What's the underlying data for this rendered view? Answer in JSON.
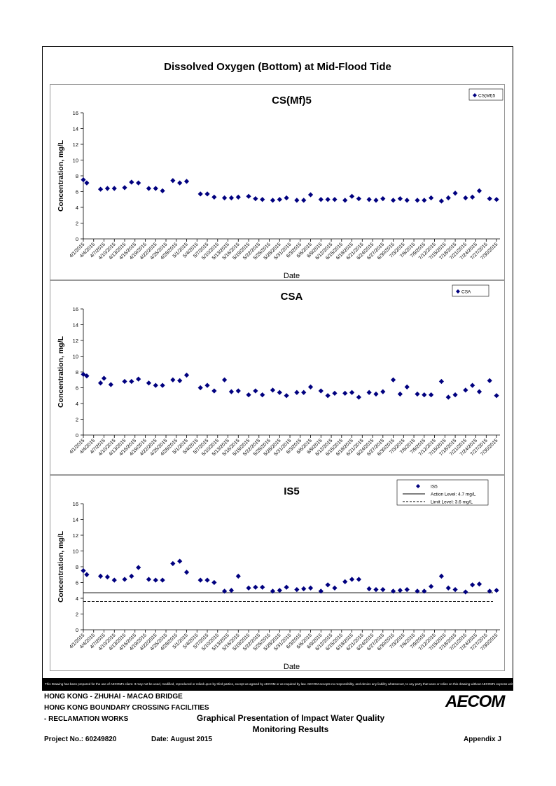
{
  "page_title": "Dissolved Oxygen (Bottom) at Mid-Flood Tide",
  "disclaimer": "This Drawing has been prepared for the use of AECOM's client. It may not be used, modified, reproduced or relied upon by third parties, except as agreed by AECOM or as required by law. AECOM accepts no responsibility, and denies any liability whatsoever, to any party that uses or relies on this drawing without AECOM's express written consent.",
  "footer": {
    "line1": "HONG KONG - ZHUHAI - MACAO BRIDGE",
    "line2": "HONG KONG BOUNDARY CROSSING FACILITIES",
    "line3": "- RECLAMATION WORKS",
    "title_line1": "Graphical Presentation of Impact Water Quality",
    "title_line2": "Monitoring Results",
    "project": "Project No.: 60249820",
    "date": "Date: August 2015",
    "appendix": "Appendix J",
    "logo": "AECOM"
  },
  "colors": {
    "marker": "#00007f",
    "line": "#000000",
    "frame": "#000000"
  },
  "chart_data": [
    {
      "type": "scatter",
      "title": "CS(Mf)5",
      "xlabel": "Date",
      "ylabel": "Concentration, mg/L",
      "ylim": [
        0,
        16
      ],
      "yticks": [
        0,
        2,
        4,
        6,
        8,
        10,
        12,
        14,
        16
      ],
      "xlim": [
        "4/1/2015",
        "7/31/2015"
      ],
      "xtick_labels": [
        "4/1/2015",
        "4/4/2015",
        "4/7/2015",
        "4/10/2015",
        "4/13/2015",
        "4/16/2015",
        "4/19/2015",
        "4/22/2015",
        "4/25/2015",
        "4/28/2015",
        "5/1/2015",
        "5/4/2015",
        "5/7/2015",
        "5/10/2015",
        "5/13/2015",
        "5/16/2015",
        "5/19/2015",
        "5/22/2015",
        "5/25/2015",
        "5/28/2015",
        "5/31/2015",
        "6/3/2015",
        "6/6/2015",
        "6/9/2015",
        "6/12/2015",
        "6/15/2015",
        "6/18/2015",
        "6/21/2015",
        "6/24/2015",
        "6/27/2015",
        "6/30/2015",
        "7/3/2015",
        "7/6/2015",
        "7/9/2015",
        "7/12/2015",
        "7/15/2015",
        "7/18/2015",
        "7/21/2015",
        "7/24/2015",
        "7/27/2015",
        "7/30/2015"
      ],
      "legend": {
        "position": "top-right",
        "entries": [
          "CS(Mf)5"
        ]
      },
      "series": [
        {
          "name": "CS(Mf)5",
          "x": [
            "4/1/2015",
            "4/2/2015",
            "4/6/2015",
            "4/8/2015",
            "4/10/2015",
            "4/13/2015",
            "4/15/2015",
            "4/17/2015",
            "4/20/2015",
            "4/22/2015",
            "4/24/2015",
            "4/27/2015",
            "4/29/2015",
            "5/1/2015",
            "5/5/2015",
            "5/7/2015",
            "5/9/2015",
            "5/12/2015",
            "5/14/2015",
            "5/16/2015",
            "5/19/2015",
            "5/21/2015",
            "5/23/2015",
            "5/26/2015",
            "5/28/2015",
            "5/30/2015",
            "6/2/2015",
            "6/4/2015",
            "6/6/2015",
            "6/9/2015",
            "6/11/2015",
            "6/13/2015",
            "6/16/2015",
            "6/18/2015",
            "6/20/2015",
            "6/23/2015",
            "6/25/2015",
            "6/27/2015",
            "6/30/2015",
            "7/2/2015",
            "7/4/2015",
            "7/7/2015",
            "7/9/2015",
            "7/11/2015",
            "7/14/2015",
            "7/16/2015",
            "7/18/2015",
            "7/21/2015",
            "7/23/2015",
            "7/25/2015",
            "7/28/2015",
            "7/30/2015",
            "8/1/2015"
          ],
          "y": [
            7.5,
            7.1,
            6.3,
            6.4,
            6.4,
            6.5,
            7.2,
            7.1,
            6.4,
            6.4,
            6.1,
            7.4,
            7.1,
            7.3,
            5.7,
            5.7,
            5.3,
            5.2,
            5.2,
            5.3,
            5.4,
            5.1,
            5.0,
            4.9,
            5.0,
            5.2,
            4.9,
            4.9,
            5.6,
            5.0,
            5.0,
            5.0,
            4.9,
            5.4,
            5.1,
            5.0,
            4.9,
            5.1,
            4.9,
            5.1,
            4.9,
            4.9,
            4.9,
            5.2,
            4.8,
            5.2,
            5.8,
            5.2,
            5.3,
            6.1,
            5.1,
            5.0,
            5.1
          ]
        }
      ]
    },
    {
      "type": "scatter",
      "title": "CSA",
      "xlabel": "",
      "ylabel": "Concentration, mg/L",
      "ylim": [
        0,
        16
      ],
      "yticks": [
        0,
        2,
        4,
        6,
        8,
        10,
        12,
        14,
        16
      ],
      "xlim": [
        "4/1/2015",
        "7/31/2015"
      ],
      "xtick_labels": [
        "4/1/2015",
        "4/4/2015",
        "4/7/2015",
        "4/10/2015",
        "4/13/2015",
        "4/16/2015",
        "4/19/2015",
        "4/22/2015",
        "4/25/2015",
        "4/28/2015",
        "5/1/2015",
        "5/4/2015",
        "5/7/2015",
        "5/10/2015",
        "5/13/2015",
        "5/16/2015",
        "5/19/2015",
        "5/22/2015",
        "5/25/2015",
        "5/28/2015",
        "5/31/2015",
        "6/3/2015",
        "6/6/2015",
        "6/9/2015",
        "6/12/2015",
        "6/15/2015",
        "6/18/2015",
        "6/21/2015",
        "6/24/2015",
        "6/27/2015",
        "6/30/2015",
        "7/3/2015",
        "7/6/2015",
        "7/9/2015",
        "7/12/2015",
        "7/15/2015",
        "7/18/2015",
        "7/21/2015",
        "7/24/2015",
        "7/27/2015",
        "7/30/2015"
      ],
      "legend": {
        "position": "top-right",
        "entries": [
          "CSA"
        ]
      },
      "series": [
        {
          "name": "CSA",
          "x": [
            "4/1/2015",
            "4/2/2015",
            "4/6/2015",
            "4/7/2015",
            "4/9/2015",
            "4/13/2015",
            "4/15/2015",
            "4/17/2015",
            "4/20/2015",
            "4/22/2015",
            "4/24/2015",
            "4/27/2015",
            "4/29/2015",
            "5/1/2015",
            "5/5/2015",
            "5/7/2015",
            "5/9/2015",
            "5/12/2015",
            "5/14/2015",
            "5/16/2015",
            "5/19/2015",
            "5/21/2015",
            "5/23/2015",
            "5/26/2015",
            "5/28/2015",
            "5/30/2015",
            "6/2/2015",
            "6/4/2015",
            "6/6/2015",
            "6/9/2015",
            "6/11/2015",
            "6/13/2015",
            "6/16/2015",
            "6/18/2015",
            "6/20/2015",
            "6/23/2015",
            "6/25/2015",
            "6/27/2015",
            "6/30/2015",
            "7/2/2015",
            "7/4/2015",
            "7/7/2015",
            "7/9/2015",
            "7/11/2015",
            "7/14/2015",
            "7/16/2015",
            "7/18/2015",
            "7/21/2015",
            "7/23/2015",
            "7/25/2015",
            "7/28/2015",
            "7/30/2015",
            "8/1/2015"
          ],
          "y": [
            7.7,
            7.5,
            6.6,
            7.2,
            6.4,
            6.8,
            6.8,
            7.1,
            6.6,
            6.3,
            6.3,
            7.0,
            6.9,
            7.6,
            6.0,
            6.3,
            5.6,
            7.0,
            5.5,
            5.6,
            5.1,
            5.6,
            5.1,
            5.7,
            5.4,
            5.0,
            5.4,
            5.4,
            6.1,
            5.6,
            5.0,
            5.3,
            5.3,
            5.4,
            4.8,
            5.4,
            5.2,
            5.5,
            7.0,
            5.2,
            6.1,
            5.2,
            5.1,
            5.1,
            6.8,
            4.8,
            5.1,
            5.7,
            6.3,
            5.5,
            6.9,
            5.0,
            5.1
          ]
        }
      ]
    },
    {
      "type": "scatter",
      "title": "IS5",
      "xlabel": "Date",
      "ylabel": "Concentration, mg/L",
      "ylim": [
        0,
        16
      ],
      "yticks": [
        0,
        2,
        4,
        6,
        8,
        10,
        12,
        14,
        16
      ],
      "xlim": [
        "4/1/2015",
        "7/31/2015"
      ],
      "xtick_labels": [
        "4/1/2015",
        "4/4/2015",
        "4/7/2015",
        "4/10/2015",
        "4/13/2015",
        "4/16/2015",
        "4/19/2015",
        "4/22/2015",
        "4/25/2015",
        "4/28/2015",
        "5/1/2015",
        "5/4/2015",
        "5/7/2015",
        "5/10/2015",
        "5/13/2015",
        "5/16/2015",
        "5/19/2015",
        "5/22/2015",
        "5/25/2015",
        "5/28/2015",
        "5/31/2015",
        "6/3/2015",
        "6/6/2015",
        "6/9/2015",
        "6/12/2015",
        "6/15/2015",
        "6/18/2015",
        "6/21/2015",
        "6/24/2015",
        "6/27/2015",
        "6/30/2015",
        "7/3/2015",
        "7/6/2015",
        "7/9/2015",
        "7/12/2015",
        "7/15/2015",
        "7/18/2015",
        "7/21/2015",
        "7/24/2015",
        "7/27/2015",
        "7/30/2015"
      ],
      "legend": {
        "position": "top-right",
        "entries": [
          "IS5",
          "Action Level: 4.7 mg/L",
          "Limit Level: 3.6 mg/L"
        ]
      },
      "reference_lines": [
        {
          "name": "Action Level: 4.7 mg/L",
          "y": 4.7,
          "style": "solid"
        },
        {
          "name": "Limit Level: 3.6 mg/L",
          "y": 3.6,
          "style": "dashed"
        }
      ],
      "series": [
        {
          "name": "IS5",
          "x": [
            "4/1/2015",
            "4/2/2015",
            "4/6/2015",
            "4/8/2015",
            "4/10/2015",
            "4/13/2015",
            "4/15/2015",
            "4/17/2015",
            "4/20/2015",
            "4/22/2015",
            "4/24/2015",
            "4/27/2015",
            "4/29/2015",
            "5/1/2015",
            "5/5/2015",
            "5/7/2015",
            "5/9/2015",
            "5/12/2015",
            "5/14/2015",
            "5/16/2015",
            "5/19/2015",
            "5/21/2015",
            "5/23/2015",
            "5/26/2015",
            "5/28/2015",
            "5/30/2015",
            "6/2/2015",
            "6/4/2015",
            "6/6/2015",
            "6/9/2015",
            "6/11/2015",
            "6/13/2015",
            "6/16/2015",
            "6/18/2015",
            "6/20/2015",
            "6/23/2015",
            "6/25/2015",
            "6/27/2015",
            "6/30/2015",
            "7/2/2015",
            "7/4/2015",
            "7/7/2015",
            "7/9/2015",
            "7/11/2015",
            "7/14/2015",
            "7/16/2015",
            "7/18/2015",
            "7/21/2015",
            "7/23/2015",
            "7/25/2015",
            "7/28/2015",
            "7/30/2015",
            "8/1/2015"
          ],
          "y": [
            7.5,
            7.0,
            6.8,
            6.7,
            6.3,
            6.4,
            6.8,
            7.9,
            6.4,
            6.3,
            6.3,
            8.4,
            8.7,
            7.3,
            6.3,
            6.3,
            6.0,
            4.9,
            5.0,
            6.8,
            5.3,
            5.4,
            5.4,
            4.9,
            5.0,
            5.4,
            5.1,
            5.2,
            5.3,
            4.9,
            5.7,
            5.3,
            6.1,
            6.4,
            6.4,
            5.2,
            5.1,
            5.1,
            4.9,
            5.0,
            5.1,
            4.9,
            4.9,
            5.5,
            6.8,
            5.3,
            5.1,
            4.8,
            5.7,
            5.8,
            4.9,
            5.0,
            5.3
          ]
        }
      ]
    }
  ]
}
